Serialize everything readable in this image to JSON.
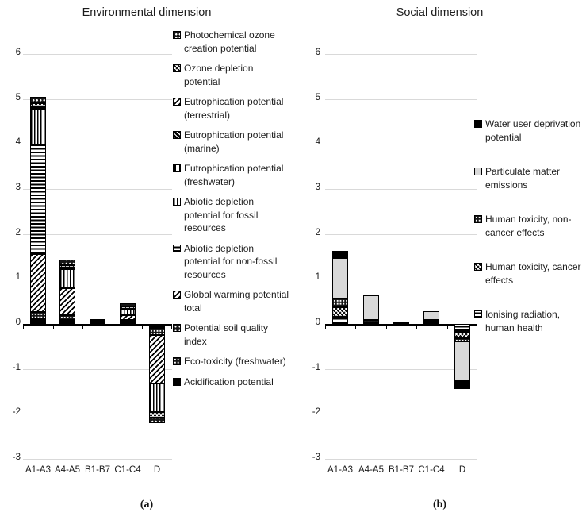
{
  "figure": {
    "captions": {
      "a": "(a)",
      "b": "(b)"
    }
  },
  "chart_data": [
    {
      "type": "bar",
      "stacked": true,
      "title": "Environmental dimension",
      "caption": "(a)",
      "categories": [
        "A1-A3",
        "A4-A5",
        "B1-B7",
        "C1-C4",
        "D"
      ],
      "y_ticks": [
        6,
        5,
        4,
        3,
        2,
        1,
        0,
        -1,
        -2,
        -3
      ],
      "ylim": [
        -3,
        6
      ],
      "grid": "horizontal",
      "legend_position": "right",
      "legend_order": "top-to-bottom is reverse of stacking order",
      "series": [
        {
          "name": "Acidification potential",
          "pattern": "solid-black",
          "values": [
            0.13,
            0.08,
            0.05,
            0.08,
            -0.11
          ]
        },
        {
          "name": "Eco-toxicity (freshwater)",
          "pattern": "dots-grid",
          "values": [
            0.13,
            0.12,
            0.02,
            0.0,
            -0.13
          ]
        },
        {
          "name": "Potential soil quality index",
          "pattern": "stars",
          "values": [
            0.0,
            0.0,
            0.0,
            0.0,
            0.0
          ]
        },
        {
          "name": "Global warming potential total",
          "pattern": "diag",
          "values": [
            1.3,
            0.6,
            0.02,
            0.11,
            -1.09
          ]
        },
        {
          "name": "Abiotic depletion potential for non-fossil resources",
          "pattern": "hlines",
          "values": [
            2.42,
            0.02,
            0.0,
            0.02,
            0.0
          ]
        },
        {
          "name": "Abiotic depletion potential for fossil resources",
          "pattern": "vlines",
          "values": [
            0.8,
            0.41,
            0.0,
            0.12,
            -0.63
          ]
        },
        {
          "name": "Eutrophication potential (freshwater)",
          "pattern": "vbar",
          "values": [
            0.02,
            0.01,
            0.0,
            0.0,
            0.0
          ]
        },
        {
          "name": "Eutrophication potential (marine)",
          "pattern": "diag-dark",
          "values": [
            0.02,
            0.01,
            0.0,
            0.0,
            0.0
          ]
        },
        {
          "name": "Eutrophication potential (terrestrial)",
          "pattern": "diag",
          "values": [
            0.02,
            0.01,
            0.0,
            0.0,
            0.0
          ]
        },
        {
          "name": "Ozone depletion potential",
          "pattern": "x-hatch",
          "values": [
            0.06,
            0.04,
            0.0,
            0.05,
            -0.12
          ]
        },
        {
          "name": "Photochemical ozone creation potential",
          "pattern": "dots-o",
          "values": [
            0.15,
            0.13,
            0.01,
            0.08,
            -0.12
          ]
        }
      ],
      "stack_totals": [
        5.05,
        1.43,
        0.1,
        0.46,
        -2.2
      ]
    },
    {
      "type": "bar",
      "stacked": true,
      "title": "Social dimension",
      "caption": "(b)",
      "categories": [
        "A1-A3",
        "A4-A5",
        "B1-B7",
        "C1-C4",
        "D"
      ],
      "y_ticks": [
        6,
        5,
        4,
        3,
        2,
        1,
        0,
        -1,
        -2,
        -3
      ],
      "ylim": [
        -3,
        6
      ],
      "grid": "horizontal",
      "legend_position": "right",
      "legend_order": "top-to-bottom is reverse of stacking order",
      "series": [
        {
          "name": "Ionising radiation, human health",
          "pattern": "hlines",
          "values": [
            0.16,
            0.01,
            0.0,
            0.01,
            -0.17
          ]
        },
        {
          "name": "Human toxicity, cancer effects",
          "pattern": "x-hatch",
          "values": [
            0.21,
            0.02,
            0.0,
            0.05,
            -0.15
          ]
        },
        {
          "name": "Human toxicity, non-cancer effects",
          "pattern": "dots-grid",
          "values": [
            0.19,
            0.06,
            0.0,
            0.02,
            -0.07
          ]
        },
        {
          "name": "Particulate matter emissions",
          "pattern": "gray",
          "values": [
            0.9,
            0.54,
            0.0,
            0.2,
            -0.86
          ]
        },
        {
          "name": "Water user deprivation potential",
          "pattern": "solid-black",
          "values": [
            0.16,
            0.0,
            0.03,
            0.0,
            -0.2
          ]
        }
      ],
      "stack_totals": [
        1.62,
        0.63,
        0.03,
        0.28,
        -1.45
      ]
    }
  ],
  "style": {
    "gridline_color": "#d9d9d9",
    "axis_color": "#000000",
    "particulate_gray": "#d9d9d9"
  }
}
